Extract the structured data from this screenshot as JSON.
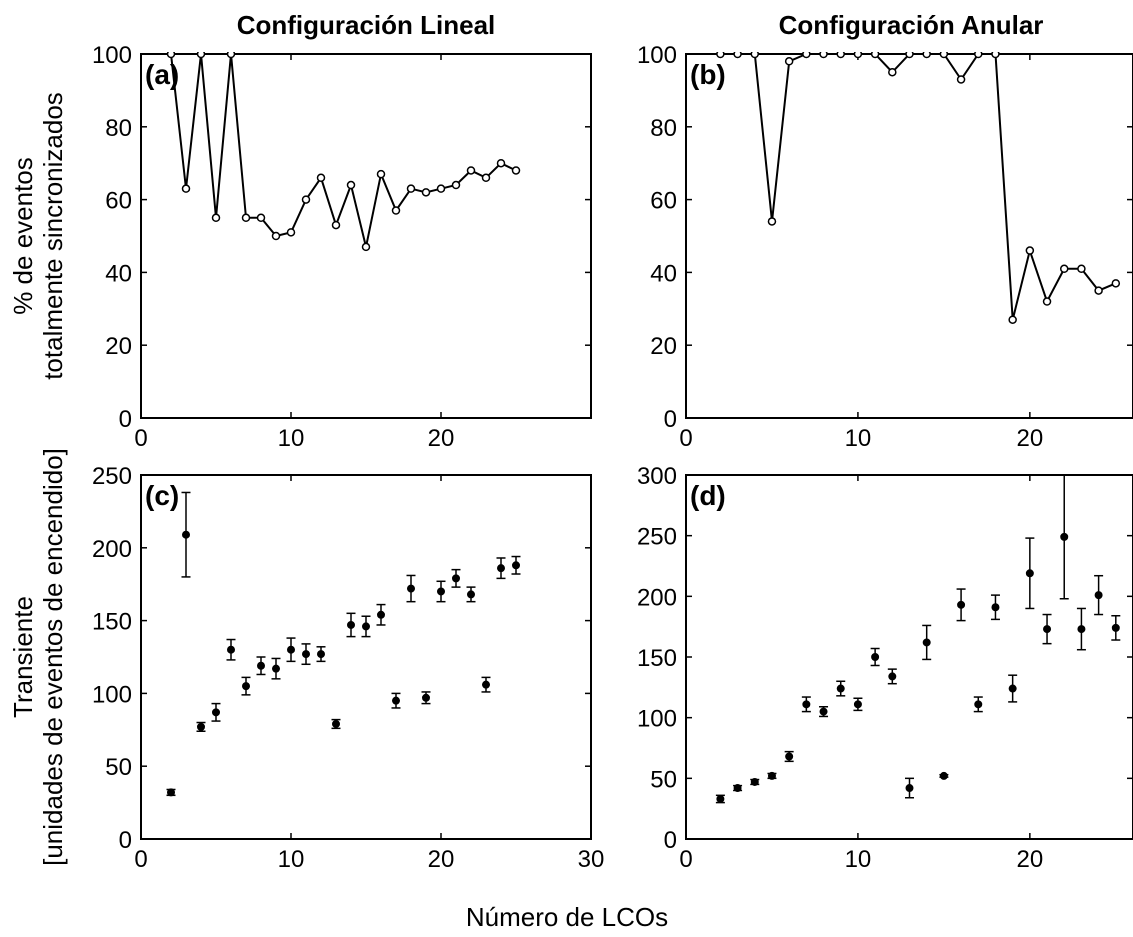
{
  "figure": {
    "xlabel": "Número de LCOs"
  },
  "chart_data": [
    {
      "id": "a",
      "panel_label": "(a)",
      "type": "line",
      "title": "Configuración Lineal",
      "ylabel": [
        "% de eventos",
        "totalmente sincronizados"
      ],
      "xlabel": "",
      "xlim": [
        0,
        30
      ],
      "ylim": [
        0,
        100
      ],
      "xticks": [
        0,
        10,
        20
      ],
      "yticks": [
        0,
        20,
        40,
        60,
        80,
        100
      ],
      "marker": "open-circle",
      "x": [
        2,
        3,
        4,
        5,
        6,
        7,
        8,
        9,
        10,
        11,
        12,
        13,
        14,
        15,
        16,
        17,
        18,
        19,
        20,
        21,
        22,
        23,
        24,
        25
      ],
      "y": [
        100,
        63,
        100,
        55,
        100,
        55,
        55,
        50,
        51,
        60,
        66,
        53,
        64,
        47,
        67,
        57,
        63,
        62,
        63,
        64,
        68,
        66,
        70,
        68
      ]
    },
    {
      "id": "b",
      "panel_label": "(b)",
      "type": "line",
      "title": "Configuración Anular",
      "ylabel": [],
      "xlabel": "",
      "xlim": [
        0,
        26
      ],
      "ylim": [
        0,
        100
      ],
      "xticks": [
        0,
        10,
        20
      ],
      "yticks": [
        0,
        20,
        40,
        60,
        80,
        100
      ],
      "marker": "open-circle",
      "x": [
        2,
        3,
        4,
        5,
        6,
        7,
        8,
        9,
        10,
        11,
        12,
        13,
        14,
        15,
        16,
        17,
        18,
        19,
        20,
        21,
        22,
        23,
        24,
        25
      ],
      "y": [
        100,
        100,
        100,
        54,
        98,
        100,
        100,
        100,
        100,
        100,
        95,
        100,
        100,
        100,
        93,
        100,
        100,
        27,
        46,
        32,
        41,
        41,
        35,
        37
      ]
    },
    {
      "id": "c",
      "panel_label": "(c)",
      "type": "scatter",
      "title": "",
      "ylabel": [
        "Transiente",
        "[unidades de eventos de encendido]"
      ],
      "xlabel": "",
      "xlim": [
        0,
        30
      ],
      "ylim": [
        0,
        250
      ],
      "xticks": [
        0,
        10,
        20,
        30
      ],
      "yticks": [
        0,
        50,
        100,
        150,
        200,
        250
      ],
      "marker": "filled-circle",
      "error_bars": true,
      "x": [
        2,
        3,
        4,
        5,
        6,
        7,
        8,
        9,
        10,
        11,
        12,
        13,
        14,
        15,
        16,
        17,
        18,
        19,
        20,
        21,
        22,
        23,
        24,
        25
      ],
      "y": [
        32,
        209,
        77,
        87,
        130,
        105,
        119,
        117,
        130,
        127,
        127,
        79,
        147,
        146,
        154,
        95,
        172,
        97,
        170,
        179,
        168,
        106,
        186,
        188
      ],
      "yerr": [
        2,
        29,
        3,
        6,
        7,
        6,
        6,
        7,
        8,
        7,
        5,
        3,
        8,
        7,
        7,
        5,
        9,
        4,
        7,
        6,
        5,
        5,
        7,
        6
      ]
    },
    {
      "id": "d",
      "panel_label": "(d)",
      "type": "scatter",
      "title": "",
      "ylabel": [],
      "xlabel": "",
      "xlim": [
        0,
        26
      ],
      "ylim": [
        0,
        300
      ],
      "xticks": [
        0,
        10,
        20
      ],
      "yticks": [
        0,
        50,
        100,
        150,
        200,
        250,
        300
      ],
      "marker": "filled-circle",
      "error_bars": true,
      "x": [
        2,
        3,
        4,
        5,
        6,
        7,
        8,
        9,
        10,
        11,
        12,
        13,
        14,
        15,
        16,
        17,
        18,
        19,
        20,
        21,
        22,
        23,
        24,
        25
      ],
      "y": [
        33,
        42,
        47,
        52,
        68,
        111,
        105,
        124,
        111,
        150,
        134,
        42,
        162,
        52,
        193,
        111,
        191,
        124,
        219,
        173,
        249,
        173,
        201,
        174
      ],
      "yerr": [
        3,
        2,
        2,
        2,
        4,
        6,
        4,
        6,
        5,
        7,
        6,
        8,
        14,
        1,
        13,
        6,
        10,
        11,
        29,
        12,
        51,
        17,
        16,
        10
      ]
    }
  ]
}
